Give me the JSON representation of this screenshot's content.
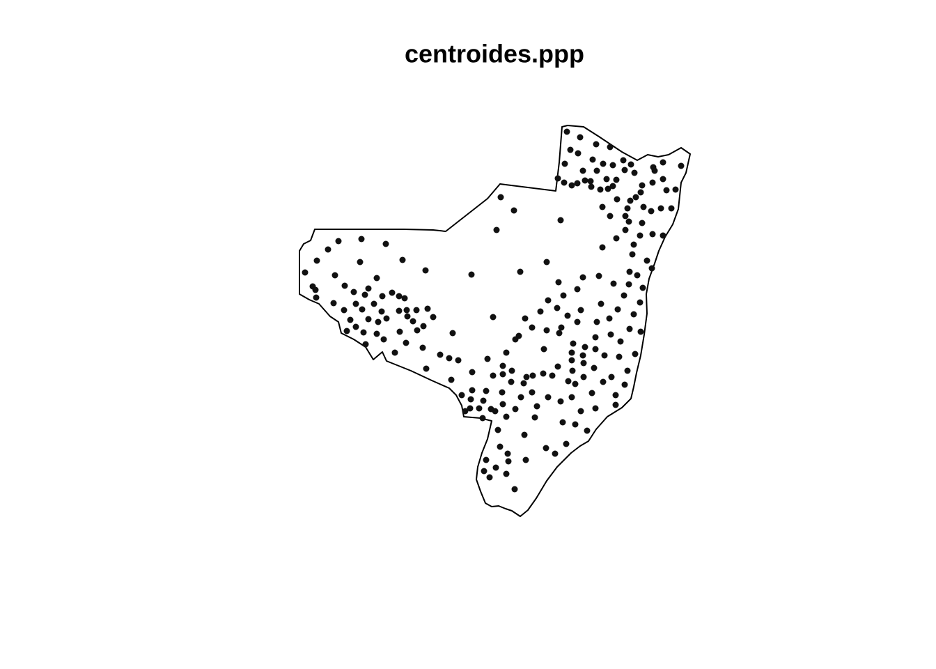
{
  "chart_data": {
    "type": "scatter",
    "title": "centroides.ppp",
    "color": "#111111",
    "x": [
      814,
      833,
      856,
      876,
      819,
      830,
      851,
      866,
      880,
      895,
      906,
      897,
      911,
      938,
      940,
      952,
      978,
      811,
      837,
      857,
      801,
      810,
      821,
      829,
      840,
      848,
      849,
      862,
      871,
      885,
      873,
      880,
      922,
      937,
      952,
      920,
      957,
      970,
      913,
      905,
      886,
      865,
      901,
      924,
      935,
      949,
      964,
      876,
      898,
      903,
      922,
      937,
      952,
      885,
      898,
      919,
      910,
      865,
      908,
      929,
      936,
      904,
      915,
      923,
      903,
      881,
      860,
      837,
      829,
      802,
      809,
      785,
      747,
      719,
      738,
      805,
      713,
      486,
      519,
      554,
      471,
      455,
      517,
      578,
      611,
      438,
      481,
      541,
      449,
      453,
      454,
      495,
      508,
      529,
      524,
      549,
      563,
      573,
      581,
      479,
      511,
      537,
      494,
      520,
      548,
      573,
      584,
      598,
      614,
      585,
      503,
      529,
      543,
      555,
      593,
      608,
      622,
      511,
      522,
      498,
      541,
      551,
      574,
      599,
      525,
      583,
      567,
      607,
      632,
      645,
      658,
      612,
      650,
      677,
      708,
      787,
      776,
      800,
      815,
      834,
      863,
      887,
      896,
      919,
      910,
      875,
      857,
      829,
      806,
      785,
      764,
      754,
      745,
      740,
      803,
      823,
      840,
      855,
      877,
      891,
      904,
      920,
      912,
      889,
      868,
      855,
      837,
      821,
      821,
      838,
      853,
      801,
      781,
      727,
      700,
      722,
      735,
      722,
      708,
      678,
      648,
      756,
      765,
      780,
      793,
      822,
      838,
      816,
      826,
      850,
      866,
      878,
      897,
      901,
      884,
      884,
      855,
      834,
      826,
      808,
      843,
      813,
      797,
      784,
      821,
      805,
      787,
      771,
      764,
      748,
      740,
      752,
      734,
      721,
      698,
      678,
      663,
      676,
      694,
      722,
      711,
      705,
      688,
      675,
      668,
      693,
      727,
      768,
      715,
      753,
      718,
      729,
      730,
      698,
      712,
      695,
      703,
      727,
      755,
      739
    ],
    "y": [
      189,
      197,
      207,
      211,
      215,
      220,
      229,
      235,
      237,
      230,
      236,
      244,
      248,
      240,
      245,
      233,
      238,
      235,
      245,
      245,
      256,
      262,
      266,
      263,
      259,
      260,
      268,
      272,
      257,
      258,
      271,
      267,
      266,
      262,
      257,
      276,
      273,
      272,
      283,
      288,
      286,
      297,
      299,
      297,
      303,
      299,
      299,
      310,
      310,
      318,
      320,
      336,
      338,
      342,
      330,
      338,
      351,
      355,
      365,
      374,
      385,
      390,
      395,
      413,
      408,
      407,
      396,
      398,
      415,
      405,
      424,
      376,
      390,
      283,
      302,
      316,
      330,
      346,
      343,
      350,
      358,
      374,
      376,
      373,
      388,
      391,
      395,
      399,
      411,
      416,
      427,
      410,
      419,
      414,
      423,
      425,
      420,
      425,
      428,
      435,
      436,
      436,
      445,
      444,
      447,
      446,
      445,
      445,
      443,
      454,
      459,
      458,
      462,
      457,
      461,
      468,
      455,
      469,
      477,
      475,
      479,
      487,
      476,
      474,
      494,
      492,
      506,
      499,
      509,
      514,
      517,
      529,
      478,
      394,
      455,
      431,
      447,
      442,
      453,
      445,
      436,
      444,
      424,
      434,
      451,
      457,
      462,
      462,
      470,
      474,
      470,
      457,
      482,
      487,
      478,
      493,
      498,
      484,
      480,
      490,
      472,
      476,
      508,
      512,
      510,
      501,
      510,
      506,
      517,
      521,
      528,
      526,
      501,
      506,
      515,
      525,
      532,
      537,
      539,
      534,
      545,
      541,
      539,
      536,
      539,
      532,
      541,
      547,
      551,
      564,
      548,
      541,
      552,
      532,
      567,
      581,
      586,
      590,
      609,
      606,
      618,
      637,
      651,
      643,
      570,
      576,
      570,
      583,
      563,
      570,
      587,
      550,
      548,
      563,
      561,
      560,
      567,
      573,
      575,
      580,
      590,
      587,
      586,
      586,
      590,
      600,
      598,
      599,
      617,
      624,
      641,
      651,
      662,
      660,
      671,
      676,
      685,
      680,
      660,
      702
    ]
  }
}
